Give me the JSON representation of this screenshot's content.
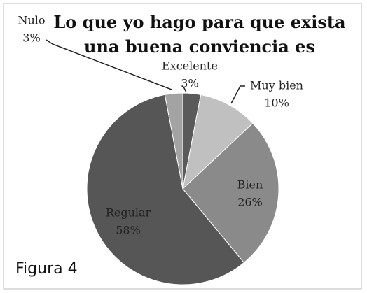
{
  "chart_data": {
    "type": "pie",
    "title": "Lo que yo hago para que exista una buena conviencia es",
    "categories": [
      "Excelente",
      "Muy bien",
      "Bien",
      "Regular",
      "Nulo"
    ],
    "values": [
      3,
      10,
      26,
      58,
      3
    ],
    "value_labels": [
      "3%",
      "10%",
      "26%",
      "58%",
      "3%"
    ],
    "colors": [
      "#5a5a5a",
      "#c0c0c0",
      "#8a8a8a",
      "#565656",
      "#a3a3a3"
    ]
  },
  "caption": "Figura 4"
}
